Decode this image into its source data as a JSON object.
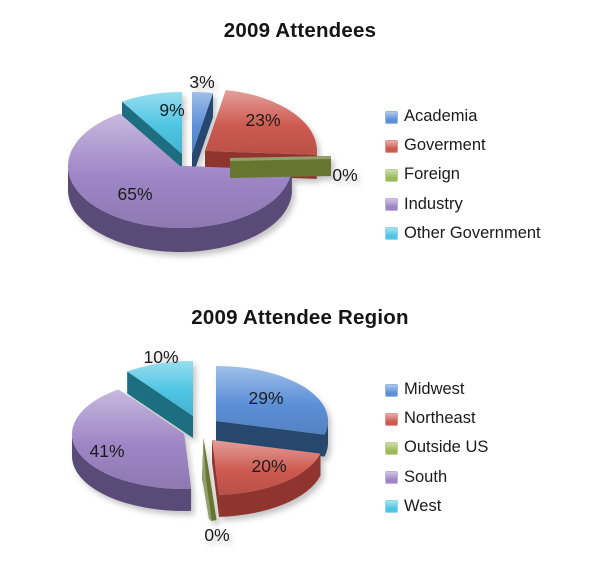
{
  "page": {
    "background": "#ffffff"
  },
  "chart_data": [
    {
      "type": "pie",
      "title": "2009 Attendees",
      "effect": "3d-exploded",
      "legend_position": "right",
      "categories": [
        "Academia",
        "Goverment",
        "Foreign",
        "Industry",
        "Other Government"
      ],
      "values": [
        3,
        23,
        0,
        65,
        9
      ],
      "value_labels": [
        "3%",
        "23%",
        "0%",
        "65%",
        "9%"
      ],
      "colors": [
        "#5C90D8",
        "#CE5A50",
        "#9BBB59",
        "#9E86C6",
        "#4EC5E4"
      ],
      "side_colors": [
        "#27486E",
        "#8F342E",
        "#66762F",
        "#594A78",
        "#1D6E80"
      ]
    },
    {
      "type": "pie",
      "title": "2009 Attendee Region",
      "effect": "3d-exploded",
      "legend_position": "right",
      "categories": [
        "Midwest",
        "Northeast",
        "Outside US",
        "South",
        "West"
      ],
      "values": [
        29,
        20,
        0,
        41,
        10
      ],
      "value_labels": [
        "29%",
        "20%",
        "0%",
        "41%",
        "10%"
      ],
      "colors": [
        "#5C90D8",
        "#CE5A50",
        "#9BBB59",
        "#9E86C6",
        "#4EC5E4"
      ],
      "side_colors": [
        "#27486E",
        "#8F342E",
        "#66762F",
        "#594A78",
        "#1D6E80"
      ]
    }
  ]
}
